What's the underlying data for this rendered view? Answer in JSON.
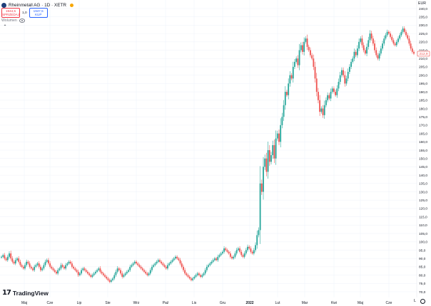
{
  "header": {
    "title": "Rheinmetall AG · 1D · XETR",
    "sell_price": "1944,5",
    "sell_label": "SPRZEDAJ",
    "spread": "1,0",
    "buy_price": "1947,5",
    "buy_label": "KUP",
    "volume_label": "Wolumen"
  },
  "brand": {
    "name": "TradingView"
  },
  "colors": {
    "up": "#26a69a",
    "down": "#ef5350",
    "grid": "#f0f3fa",
    "last_price": "#ef5350"
  },
  "chart_data": {
    "type": "candlestick",
    "currency": "EUR",
    "y_axis": {
      "min": 67.5,
      "max": 242.5,
      "tick_labels": [
        "240,0",
        "235,0",
        "230,0",
        "225,0",
        "220,0",
        "215,0",
        "210,0",
        "205,0",
        "200,0",
        "195,0",
        "190,0",
        "185,0",
        "180,0",
        "175,0",
        "170,0",
        "165,0",
        "160,0",
        "155,0",
        "150,0",
        "145,0",
        "140,0",
        "135,0",
        "130,0",
        "125,0",
        "120,0",
        "115,0",
        "110,0",
        "105,0",
        "100,0",
        "95,0",
        "90,0",
        "85,0",
        "80,0",
        "75,0",
        "70,0"
      ]
    },
    "x_axis": {
      "tick_labels": [
        "Maj",
        "Cze",
        "Lip",
        "Sie",
        "Wrz",
        "Paź",
        "Lis",
        "Gru",
        "2022",
        "Lut",
        "Mar",
        "Kwi",
        "Maj",
        "Cze",
        "L"
      ]
    },
    "last_price_label": "212,9",
    "last_price": 212.9,
    "grid": true,
    "candles_close": [
      91,
      92,
      90,
      89,
      91,
      93,
      90,
      88,
      87,
      89,
      90,
      88,
      86,
      85,
      84,
      86,
      88,
      87,
      85,
      84,
      83,
      85,
      86,
      87,
      85,
      83,
      84,
      86,
      88,
      89,
      87,
      85,
      84,
      83,
      82,
      81,
      83,
      84,
      86,
      85,
      84,
      86,
      87,
      88,
      87,
      85,
      84,
      83,
      82,
      80,
      81,
      83,
      84,
      83,
      82,
      81,
      80,
      79,
      80,
      81,
      82,
      83,
      84,
      82,
      81,
      80,
      79,
      78,
      77,
      76,
      77,
      78,
      80,
      82,
      84,
      83,
      81,
      79,
      80,
      81,
      82,
      83,
      85,
      86,
      87,
      88,
      87,
      86,
      85,
      84,
      83,
      82,
      81,
      80,
      81,
      83,
      85,
      86,
      87,
      88,
      89,
      88,
      87,
      86,
      85,
      84,
      86,
      87,
      88,
      89,
      90,
      91,
      90,
      89,
      87,
      85,
      83,
      81,
      80,
      79,
      78,
      77,
      78,
      79,
      80,
      81,
      80,
      79,
      80,
      81,
      83,
      85,
      86,
      87,
      88,
      89,
      90,
      89,
      91,
      92,
      93,
      94,
      96,
      95,
      94,
      93,
      91,
      90,
      91,
      93,
      95,
      96,
      94,
      92,
      91,
      93,
      95,
      97,
      96,
      94,
      93,
      95,
      98,
      104,
      107,
      135,
      130,
      145,
      150,
      142,
      155,
      148,
      152,
      158,
      150,
      162,
      165,
      160,
      170,
      175,
      182,
      190,
      188,
      195,
      200,
      198,
      205,
      208,
      210,
      206,
      215,
      218,
      214,
      220,
      222,
      217,
      215,
      212,
      210,
      205,
      198,
      190,
      185,
      178,
      180,
      176,
      182,
      185,
      188,
      186,
      190,
      192,
      190,
      188,
      192,
      196,
      200,
      203,
      200,
      195,
      198,
      202,
      205,
      208,
      210,
      214,
      212,
      216,
      220,
      222,
      218,
      215,
      213,
      217,
      221,
      225,
      222,
      219,
      215,
      212,
      210,
      213,
      216,
      219,
      222,
      224,
      226,
      225,
      223,
      221,
      219,
      218,
      220,
      222,
      224,
      226,
      228,
      226,
      224,
      222,
      219,
      216,
      214,
      212.9
    ]
  }
}
